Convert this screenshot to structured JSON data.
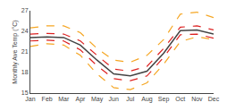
{
  "chart_data": {
    "type": "line",
    "ylabel": "Monthly Ave Temp (°C)",
    "categories": [
      "Jan",
      "Feb",
      "Mar",
      "Apr",
      "May",
      "Jun",
      "Jul",
      "Aug",
      "Sep",
      "Oct",
      "Nov",
      "Dec"
    ],
    "series": [
      {
        "color": "#f5a623",
        "line_style": "dashed",
        "values": [
          21.8,
          22.2,
          22.0,
          20.5,
          17.8,
          15.8,
          15.5,
          16.5,
          19.2,
          22.5,
          23.2,
          22.8
        ]
      },
      {
        "color": "#f5a623",
        "line_style": "dashed",
        "values": [
          24.5,
          24.8,
          24.8,
          23.8,
          21.5,
          19.8,
          19.5,
          20.5,
          22.8,
          26.5,
          26.8,
          26.0
        ]
      },
      {
        "color": "#dd2222",
        "line_style": "dashed",
        "values": [
          22.6,
          22.7,
          22.6,
          21.3,
          19.0,
          17.1,
          16.8,
          17.5,
          20.2,
          23.5,
          23.6,
          23.0
        ]
      },
      {
        "color": "#dd2222",
        "line_style": "dashed",
        "values": [
          23.6,
          23.7,
          23.6,
          22.6,
          20.5,
          18.5,
          18.2,
          18.9,
          21.5,
          24.6,
          24.8,
          24.2
        ]
      },
      {
        "color": "#444444",
        "line_style": "solid",
        "values": [
          23.1,
          23.2,
          23.1,
          22.0,
          19.8,
          17.8,
          17.5,
          18.2,
          20.8,
          24.1,
          24.2,
          23.6
        ]
      }
    ],
    "ylim": [
      15,
      27
    ],
    "yticks": [
      15,
      18,
      21,
      24,
      27
    ],
    "grid": false
  }
}
